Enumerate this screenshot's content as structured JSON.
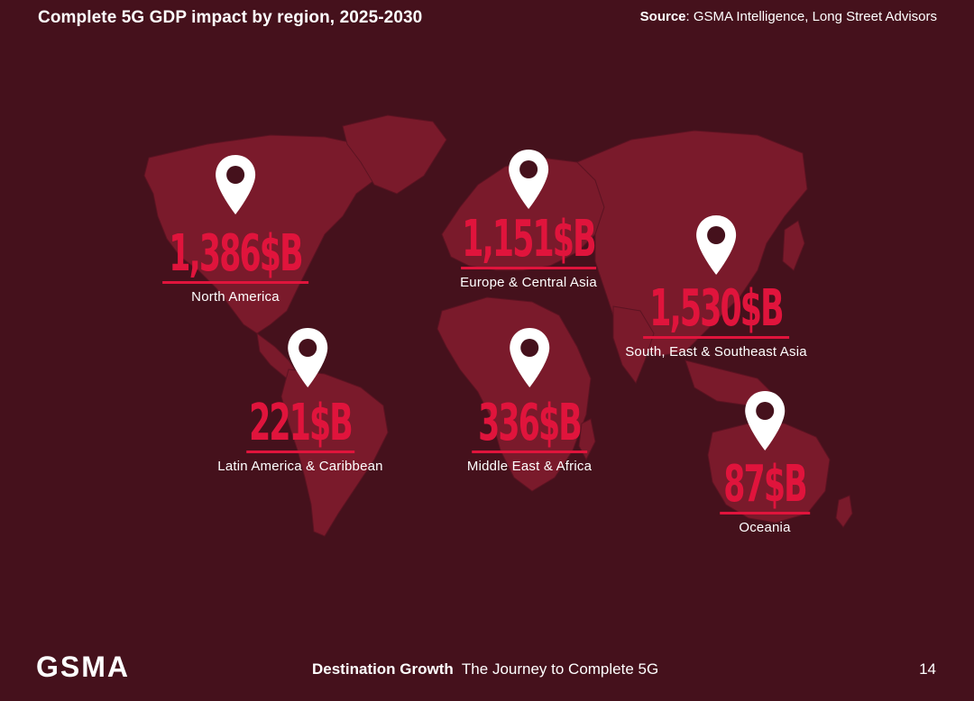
{
  "header": {
    "title": "Complete 5G GDP impact by region, 2025-2030",
    "source_label": "Source",
    "source_text": ": GSMA Intelligence, Long Street Advisors"
  },
  "regions": [
    {
      "value": "1,386$B",
      "label": "North America"
    },
    {
      "value": "1,151$B",
      "label": "Europe & Central Asia"
    },
    {
      "value": "1,530$B",
      "label": "South, East & Southeast Asia"
    },
    {
      "value": "221$B",
      "label": "Latin America & Caribbean"
    },
    {
      "value": "336$B",
      "label": "Middle East & Africa"
    },
    {
      "value": "87$B",
      "label": "Oceania"
    }
  ],
  "footer": {
    "logo": "GSMA",
    "report_name": "Destination Growth",
    "report_subtitle": "The Journey to Complete 5G",
    "page_number": "14"
  },
  "colors": {
    "background": "#45111c",
    "land": "#7a1a2b",
    "accent": "#e0143c",
    "text": "#ffffff"
  },
  "icons": {
    "pin": "map-pin-icon"
  }
}
